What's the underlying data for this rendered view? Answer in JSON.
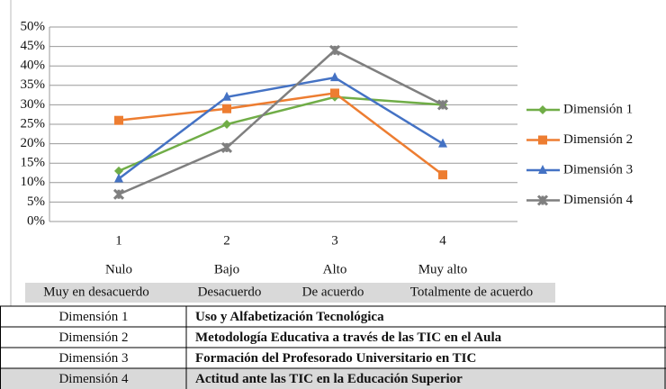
{
  "chart_data": {
    "type": "line",
    "categories": [
      "1",
      "2",
      "3",
      "4"
    ],
    "category_labels": [
      "Nulo",
      "Bajo",
      "Alto",
      "Muy alto"
    ],
    "category_scale": [
      "Muy en desacuerdo",
      "Desacuerdo",
      "De acuerdo",
      "Totalmente de acuerdo"
    ],
    "ylim": [
      0,
      50
    ],
    "yticks": [
      {
        "value": 0,
        "label": "0%"
      },
      {
        "value": 5,
        "label": "5%"
      },
      {
        "value": 10,
        "label": "10%"
      },
      {
        "value": 15,
        "label": "15%"
      },
      {
        "value": 20,
        "label": "20%"
      },
      {
        "value": 25,
        "label": "25%"
      },
      {
        "value": 30,
        "label": "30%"
      },
      {
        "value": 35,
        "label": "35%"
      },
      {
        "value": 40,
        "label": "40%"
      },
      {
        "value": 45,
        "label": "45%"
      },
      {
        "value": 50,
        "label": "50%"
      }
    ],
    "grid": true,
    "legend": "right",
    "series": [
      {
        "name": "Dimensión 1",
        "color": "#70ad47",
        "marker": "diamond",
        "values": [
          13,
          25,
          32,
          30
        ]
      },
      {
        "name": "Dimensión 2",
        "color": "#ed7d31",
        "marker": "square",
        "values": [
          26,
          29,
          33,
          12
        ]
      },
      {
        "name": "Dimensión 3",
        "color": "#4472c4",
        "marker": "triangle",
        "values": [
          11,
          32,
          37,
          20
        ]
      },
      {
        "name": "Dimensión 4",
        "color": "#7f7f7f",
        "marker": "star",
        "values": [
          7,
          19,
          44,
          30
        ]
      }
    ]
  },
  "table": {
    "rows": [
      [
        "Dimensión 1",
        "Uso y Alfabetización Tecnológica"
      ],
      [
        "Dimensión 2",
        "Metodología Educativa a través de las TIC en el Aula"
      ],
      [
        "Dimensión 3",
        "Formación del Profesorado Universitario en TIC"
      ],
      [
        "Dimensión 4",
        "Actitud ante las TIC en la Educación Superior"
      ]
    ]
  }
}
